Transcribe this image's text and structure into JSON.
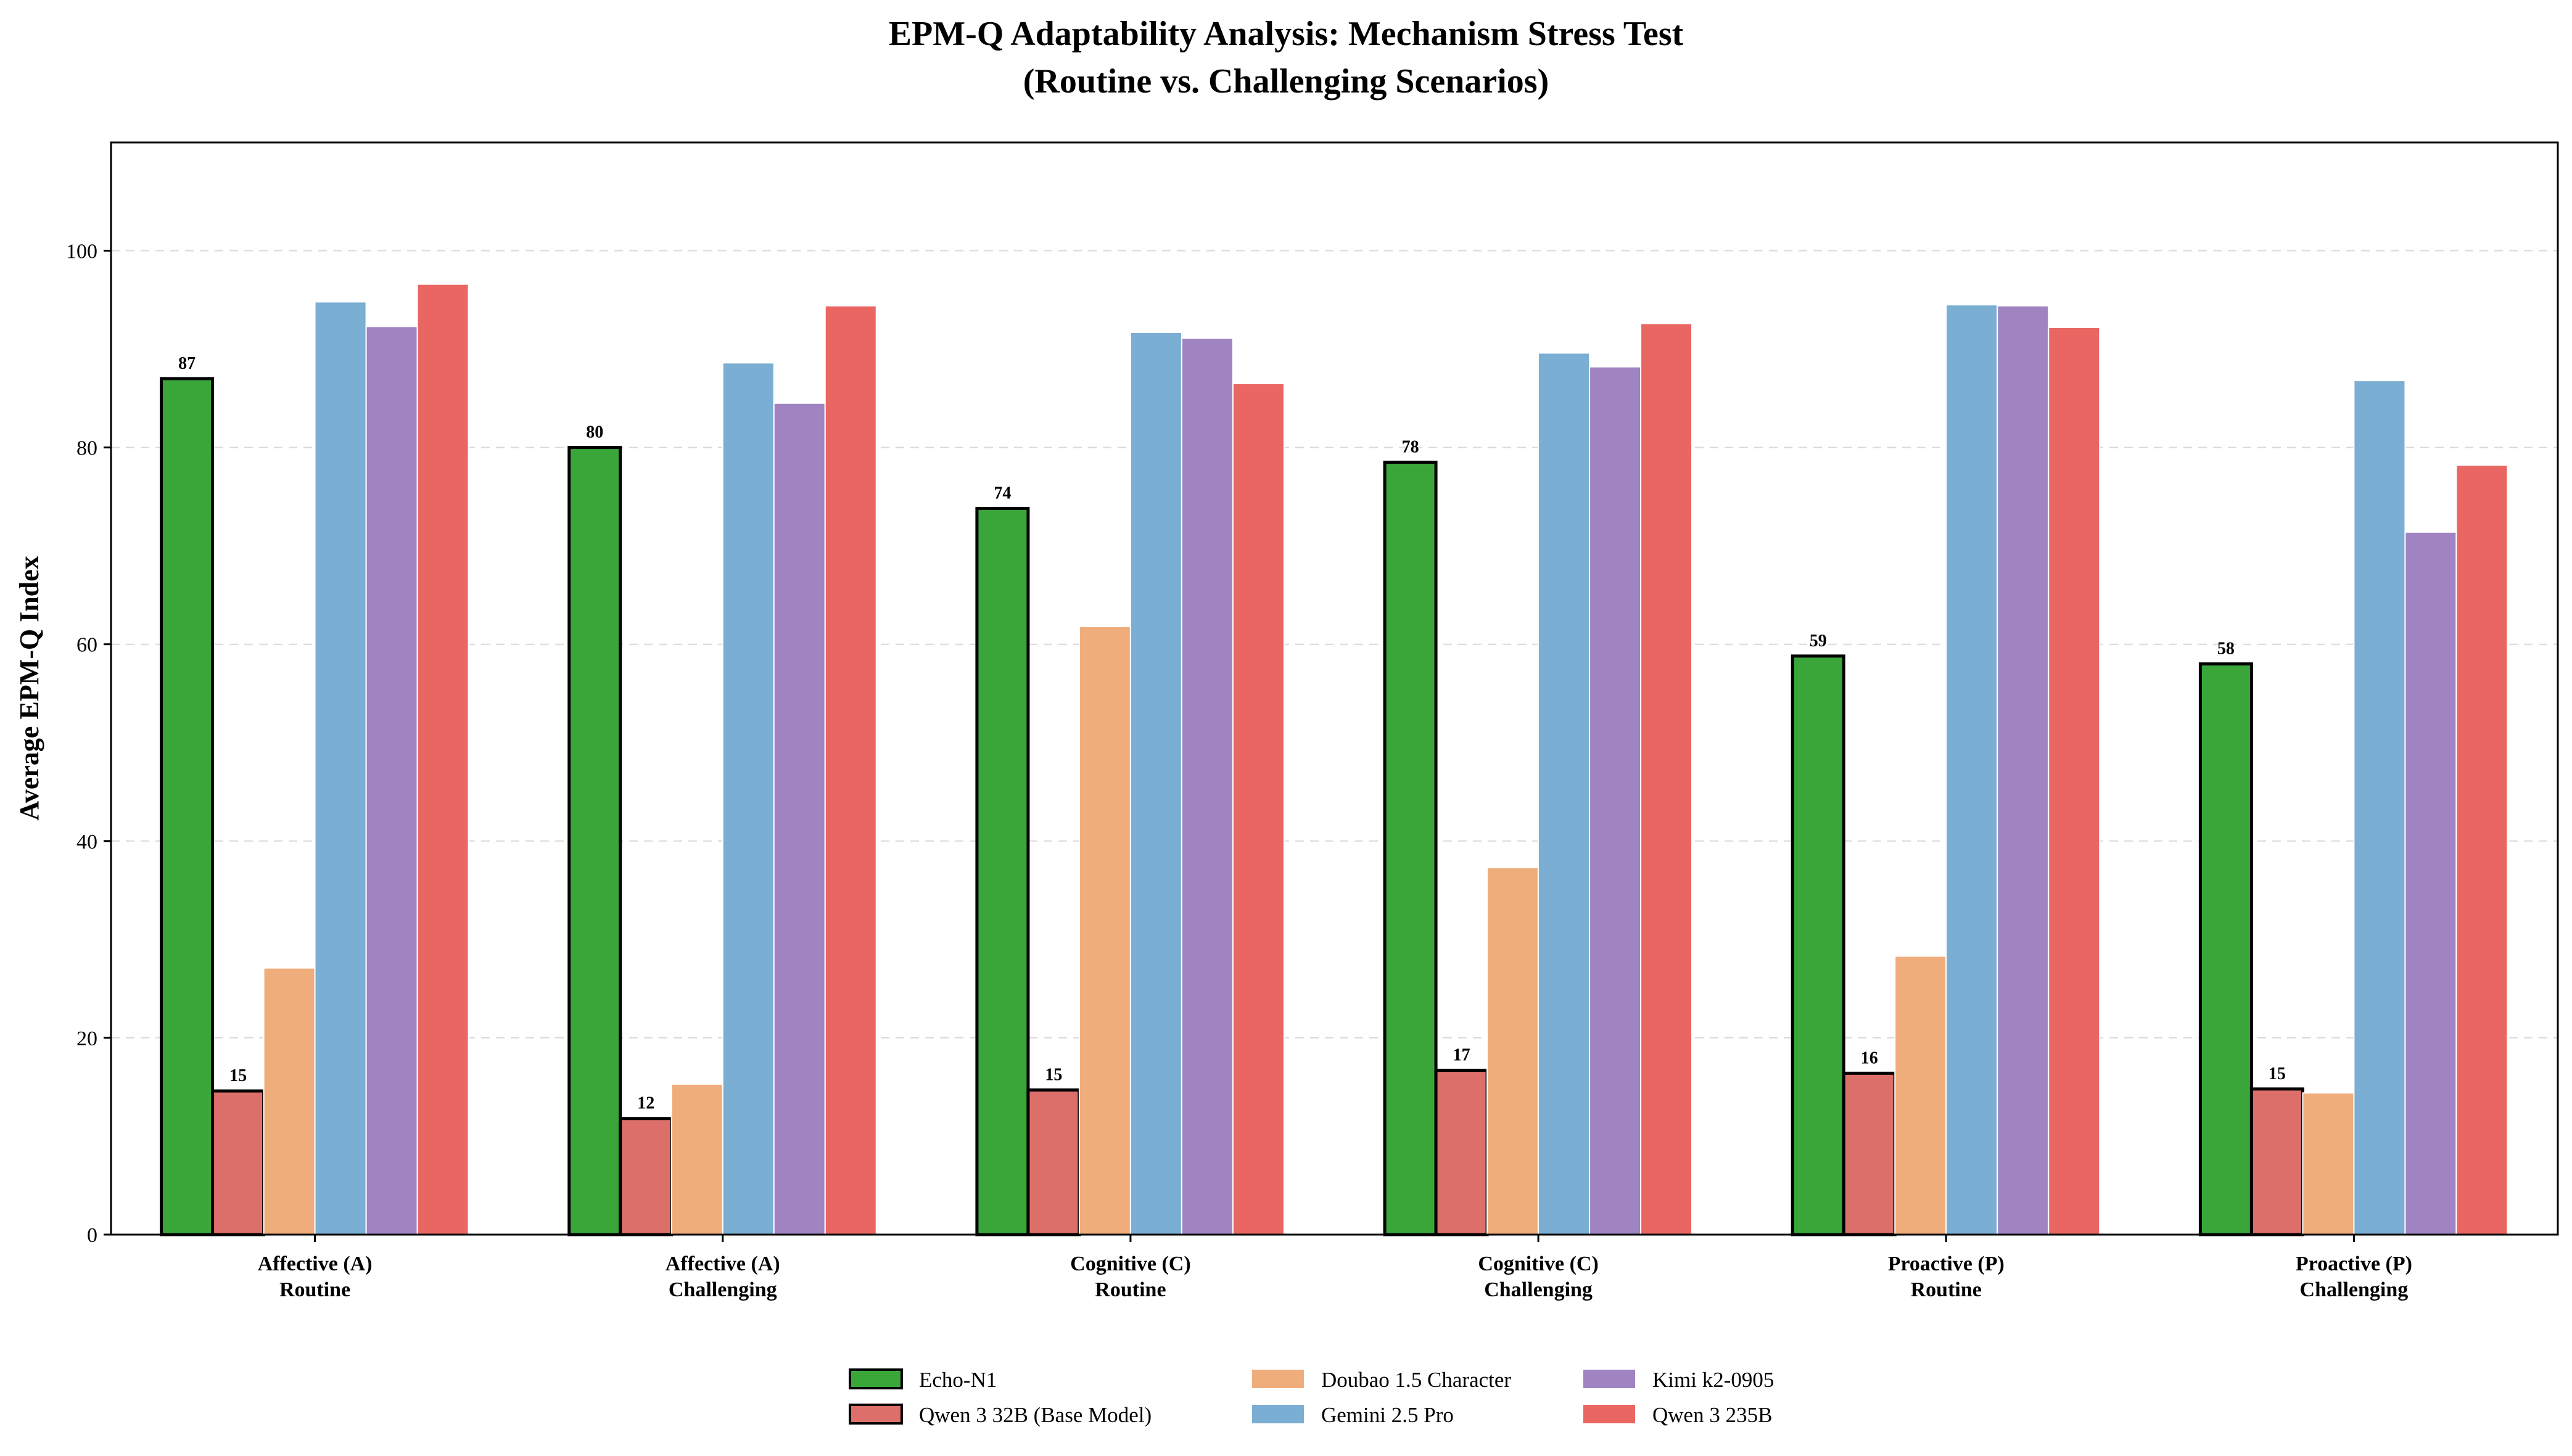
{
  "chart_data": {
    "type": "bar",
    "title": "EPM-Q Adaptability Analysis: Mechanism Stress Test",
    "subtitle": "(Routine vs. Challenging Scenarios)",
    "xlabel": "",
    "ylabel": "Average EPM-Q Index",
    "ylim": [
      0,
      111
    ],
    "yticks": [
      0,
      20,
      40,
      60,
      80,
      100
    ],
    "grid": "horizontal dashed",
    "legend_position": "bottom-center",
    "categories": [
      [
        "Affective (A)",
        "Routine"
      ],
      [
        "Affective (A)",
        "Challenging"
      ],
      [
        "Cognitive (C)",
        "Routine"
      ],
      [
        "Cognitive (C)",
        "Challenging"
      ],
      [
        "Proactive (P)",
        "Routine"
      ],
      [
        "Proactive (P)",
        "Challenging"
      ]
    ],
    "series": [
      {
        "name": "Echo-N1",
        "color": "#3aa63a",
        "highlight": true,
        "labeled": true,
        "values": [
          87,
          80,
          73.8,
          78.5,
          58.8,
          58
        ]
      },
      {
        "name": "Qwen 3 32B (Base Model)",
        "color": "#dc6f6a",
        "highlight": true,
        "labeled": true,
        "values": [
          14.6,
          11.8,
          14.7,
          16.7,
          16.4,
          14.8
        ]
      },
      {
        "name": "Doubao 1.5 Character",
        "color": "#f0ad7c",
        "highlight": false,
        "labeled": false,
        "values": [
          27.1,
          15.3,
          61.8,
          37.3,
          28.3,
          14.4
        ]
      },
      {
        "name": "Gemini 2.5 Pro",
        "color": "#7aaed3",
        "highlight": false,
        "labeled": false,
        "values": [
          94.8,
          88.6,
          91.7,
          89.6,
          94.5,
          86.8
        ]
      },
      {
        "name": "Kimi k2-0905",
        "color": "#a084c1",
        "highlight": false,
        "labeled": false,
        "values": [
          92.3,
          84.5,
          91.1,
          88.2,
          94.4,
          71.4
        ]
      },
      {
        "name": "Qwen 3 235B",
        "color": "#e96663",
        "highlight": false,
        "labeled": false,
        "values": [
          96.6,
          94.4,
          86.5,
          92.6,
          92.2,
          78.2
        ]
      }
    ],
    "data_labels": [
      [
        "87",
        "80",
        "74",
        "78",
        "59",
        "58"
      ],
      [
        "15",
        "12",
        "15",
        "17",
        "16",
        "15"
      ]
    ]
  }
}
